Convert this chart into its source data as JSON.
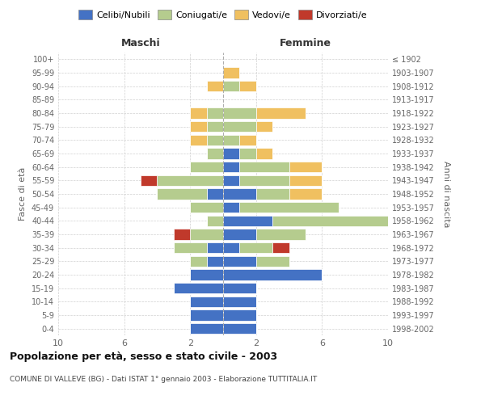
{
  "age_groups": [
    "0-4",
    "5-9",
    "10-14",
    "15-19",
    "20-24",
    "25-29",
    "30-34",
    "35-39",
    "40-44",
    "45-49",
    "50-54",
    "55-59",
    "60-64",
    "65-69",
    "70-74",
    "75-79",
    "80-84",
    "85-89",
    "90-94",
    "95-99",
    "100+"
  ],
  "birth_years": [
    "1998-2002",
    "1993-1997",
    "1988-1992",
    "1983-1987",
    "1978-1982",
    "1973-1977",
    "1968-1972",
    "1963-1967",
    "1958-1962",
    "1953-1957",
    "1948-1952",
    "1943-1947",
    "1938-1942",
    "1933-1937",
    "1928-1932",
    "1923-1927",
    "1918-1922",
    "1913-1917",
    "1908-1912",
    "1903-1907",
    "≤ 1902"
  ],
  "colors": {
    "celibi": "#4472c4",
    "coniugati": "#b5cc8e",
    "vedovi": "#f0c060",
    "divorziati": "#c0392b"
  },
  "male": {
    "celibi": [
      2,
      2,
      2,
      3,
      2,
      1,
      1,
      0,
      0,
      0,
      1,
      0,
      0,
      0,
      0,
      0,
      0,
      0,
      0,
      0,
      0
    ],
    "coniugati": [
      0,
      0,
      0,
      0,
      0,
      1,
      2,
      2,
      1,
      2,
      3,
      4,
      2,
      1,
      1,
      1,
      1,
      0,
      0,
      0,
      0
    ],
    "vedovi": [
      0,
      0,
      0,
      0,
      0,
      0,
      0,
      0,
      0,
      0,
      0,
      0,
      0,
      0,
      1,
      1,
      1,
      0,
      1,
      0,
      0
    ],
    "divorziati": [
      0,
      0,
      0,
      0,
      0,
      0,
      0,
      1,
      0,
      0,
      0,
      1,
      0,
      0,
      0,
      0,
      0,
      0,
      0,
      0,
      0
    ]
  },
  "female": {
    "celibi": [
      2,
      2,
      2,
      2,
      6,
      2,
      1,
      2,
      3,
      1,
      2,
      1,
      1,
      1,
      0,
      0,
      0,
      0,
      0,
      0,
      0
    ],
    "coniugati": [
      0,
      0,
      0,
      0,
      0,
      2,
      2,
      3,
      7,
      6,
      2,
      3,
      3,
      1,
      1,
      2,
      2,
      0,
      1,
      0,
      0
    ],
    "vedovi": [
      0,
      0,
      0,
      0,
      0,
      0,
      0,
      0,
      0,
      0,
      2,
      2,
      2,
      1,
      1,
      1,
      3,
      0,
      1,
      1,
      0
    ],
    "divorziati": [
      0,
      0,
      0,
      0,
      0,
      0,
      1,
      0,
      0,
      0,
      0,
      0,
      0,
      0,
      0,
      0,
      0,
      0,
      0,
      0,
      0
    ]
  },
  "xlim": 10,
  "xticks": [
    -10,
    -6,
    -2,
    2,
    6,
    10
  ],
  "title": "Popolazione per età, sesso e stato civile - 2003",
  "subtitle": "COMUNE DI VALLEVE (BG) - Dati ISTAT 1° gennaio 2003 - Elaborazione TUTTITALIA.IT",
  "xlabel_left": "Maschi",
  "xlabel_right": "Femmine",
  "ylabel_left": "Fasce di età",
  "ylabel_right": "Anni di nascita",
  "legend_labels": [
    "Celibi/Nubili",
    "Coniugati/e",
    "Vedovi/e",
    "Divorziati/e"
  ],
  "bg_color": "#ffffff",
  "grid_color": "#cccccc",
  "text_color": "#666666"
}
